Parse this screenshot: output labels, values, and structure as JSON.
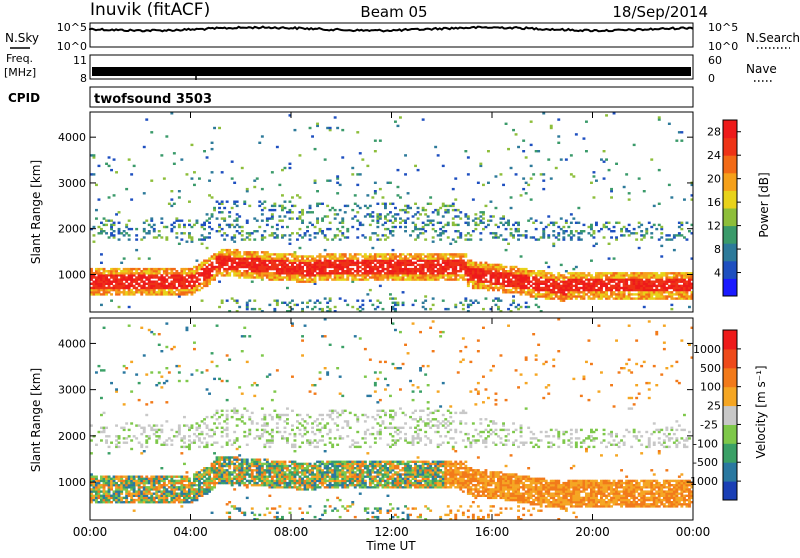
{
  "header": {
    "station": "Inuvik (fitACF)",
    "beam": "Beam 05",
    "date": "18/Sep/2014"
  },
  "panels": {
    "nsky": {
      "label": "N.Sky",
      "ticks_left": [
        "10^5",
        "10^0"
      ],
      "ticks_right": [
        "10^5",
        "10^0"
      ],
      "right_label": "N.Search"
    },
    "freq": {
      "label_line1": "Freq.",
      "label_line2": "[MHz]",
      "ticks_left": [
        "11",
        "8"
      ],
      "ticks_right": [
        "60",
        "0"
      ],
      "right_label": "Nave"
    },
    "cpid": {
      "label": "CPID",
      "program": "twofsound 3503"
    }
  },
  "chart_data": [
    {
      "type": "heatmap",
      "title": "",
      "xlabel": "",
      "ylabel": "Slant Range [km]",
      "x_ticks": [
        "00:00",
        "04:00",
        "08:00",
        "12:00",
        "16:00",
        "20:00",
        "00:00"
      ],
      "y_ticks": [
        1000,
        2000,
        3000,
        4000
      ],
      "xlim": [
        0,
        24
      ],
      "ylim": [
        180,
        4550
      ],
      "colorbar": {
        "label": "Power [dB]",
        "ticks": [
          4,
          8,
          12,
          16,
          20,
          24,
          28
        ],
        "range": [
          0,
          30
        ],
        "colors": [
          "#1a1aff",
          "#1e4fc0",
          "#2d7a9a",
          "#3a9a6a",
          "#8dbe3a",
          "#e8d21a",
          "#f5a01a",
          "#f26a16",
          "#ee3316",
          "#ee1a1a"
        ]
      }
    },
    {
      "type": "heatmap",
      "title": "",
      "xlabel": "Time UT",
      "ylabel": "Slant Range [km]",
      "x_ticks": [
        "00:00",
        "04:00",
        "08:00",
        "12:00",
        "16:00",
        "20:00",
        "00:00"
      ],
      "y_ticks": [
        1000,
        2000,
        3000,
        4000
      ],
      "xlim": [
        0,
        24
      ],
      "ylim": [
        180,
        4550
      ],
      "colorbar": {
        "label": "Velocity [m s⁻¹]",
        "ticks": [
          "1000",
          "500",
          "100",
          "25",
          "-25",
          "-100",
          "-500",
          "-1000"
        ],
        "colors": [
          "#1a3fb5",
          "#2a78a0",
          "#3aa066",
          "#7ec84a",
          "#c8c8c8",
          "#f5a623",
          "#f27a1a",
          "#ee4a1a",
          "#ee1a1a"
        ]
      }
    }
  ]
}
